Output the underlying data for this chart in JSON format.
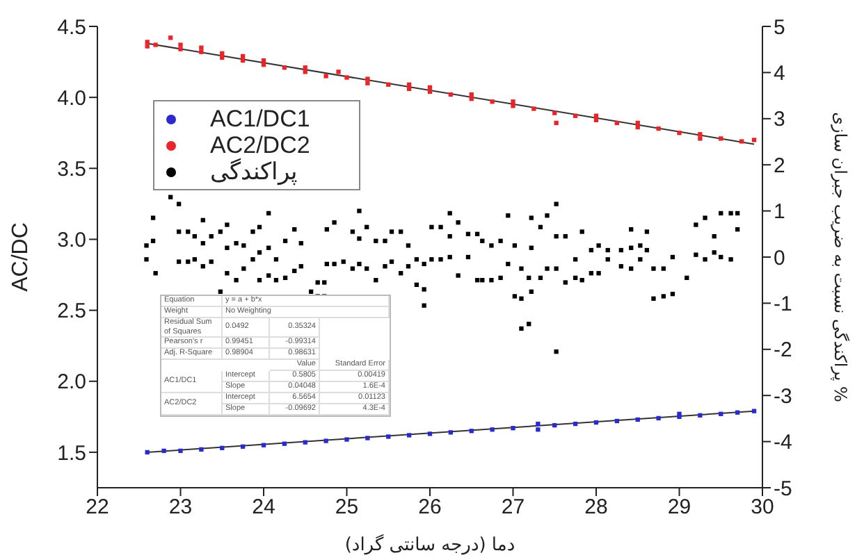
{
  "chart_data": {
    "type": "scatter",
    "xlabel": "دما (درجه سانتی گراد)",
    "ylabel": "AC/DC",
    "y2label": "پراکندگی نسبت به ضریب جبران سازی %",
    "xlim": [
      22,
      30
    ],
    "xticks": [
      22,
      23,
      24,
      25,
      26,
      27,
      28,
      29,
      30
    ],
    "ylim": [
      1.25,
      4.5
    ],
    "yticks": [
      1.5,
      {
        "value": 2,
        "label": "2.0"
      },
      2.5,
      {
        "value": 3,
        "label": "3.0"
      },
      3.5,
      {
        "value": 4,
        "label": "4.0"
      },
      4.5
    ],
    "y2lim": [
      -5,
      5
    ],
    "y2ticks": [
      -5,
      -4,
      -3,
      -2,
      -1,
      0,
      1,
      2,
      3,
      4,
      5
    ],
    "legend": "top left",
    "marker": "square",
    "series": [
      {
        "name": "AC1/DC1",
        "color": "#2a2ad0",
        "x": [
          22.6,
          22.8,
          23.0,
          23.25,
          23.5,
          23.75,
          24.0,
          24.25,
          24.5,
          24.75,
          25.0,
          25.25,
          25.5,
          25.75,
          26.0,
          26.25,
          26.5,
          26.75,
          27.0,
          27.3,
          27.3,
          27.5,
          27.75,
          28.0,
          28.25,
          28.5,
          28.75,
          29.0,
          29.0,
          29.25,
          29.5,
          29.7,
          29.9
        ],
        "values": [
          1.5,
          1.51,
          1.51,
          1.52,
          1.53,
          1.54,
          1.55,
          1.56,
          1.57,
          1.58,
          1.59,
          1.6,
          1.61,
          1.62,
          1.63,
          1.64,
          1.65,
          1.66,
          1.67,
          1.66,
          1.7,
          1.69,
          1.7,
          1.71,
          1.72,
          1.73,
          1.74,
          1.75,
          1.77,
          1.76,
          1.77,
          1.78,
          1.79
        ]
      },
      {
        "name": "AC2/DC2",
        "color": "#e8262a",
        "x": [
          22.6,
          22.6,
          22.7,
          22.88,
          23.0,
          23.0,
          23.25,
          23.25,
          23.5,
          23.5,
          23.75,
          23.75,
          24.0,
          24.0,
          24.25,
          24.5,
          24.5,
          24.75,
          24.9,
          25.0,
          25.25,
          25.25,
          25.5,
          25.75,
          25.75,
          26.0,
          26.0,
          26.25,
          26.5,
          26.5,
          26.75,
          27.0,
          27.0,
          27.25,
          27.5,
          27.52,
          27.75,
          28.0,
          28.0,
          28.25,
          28.5,
          28.5,
          28.75,
          29.0,
          29.25,
          29.25,
          29.5,
          29.75,
          29.9
        ],
        "values": [
          4.36,
          4.39,
          4.37,
          4.42,
          4.34,
          4.37,
          4.32,
          4.35,
          4.28,
          4.31,
          4.26,
          4.29,
          4.23,
          4.26,
          4.21,
          4.18,
          4.21,
          4.15,
          4.18,
          4.14,
          4.1,
          4.13,
          4.09,
          4.06,
          4.09,
          4.04,
          4.07,
          4.02,
          3.99,
          4.02,
          3.97,
          3.94,
          3.97,
          3.92,
          3.89,
          3.82,
          3.87,
          3.84,
          3.87,
          3.82,
          3.79,
          3.82,
          3.78,
          3.75,
          3.71,
          3.74,
          3.71,
          3.69,
          3.7
        ]
      },
      {
        "name": "پراکندگی",
        "color": "#000000",
        "axis": "y2",
        "x": [
          22.59,
          22.59,
          22.67,
          22.67,
          22.7,
          22.88,
          22.98,
          22.98,
          22.98,
          23.09,
          23.09,
          23.17,
          23.17,
          23.27,
          23.27,
          23.27,
          23.37,
          23.37,
          23.48,
          23.48,
          23.56,
          23.56,
          23.56,
          23.67,
          23.67,
          23.76,
          23.76,
          23.87,
          23.87,
          23.95,
          23.95,
          23.95,
          24.06,
          24.06,
          24.06,
          24.15,
          24.15,
          24.26,
          24.26,
          24.37,
          24.37,
          24.45,
          24.45,
          24.57,
          24.65,
          24.65,
          24.73,
          24.73,
          24.76,
          24.76,
          24.85,
          24.85,
          24.96,
          25.07,
          25.07,
          25.15,
          25.15,
          25.15,
          25.24,
          25.24,
          25.35,
          25.35,
          25.46,
          25.46,
          25.54,
          25.54,
          25.65,
          25.65,
          25.74,
          25.74,
          25.84,
          25.84,
          25.93,
          25.93,
          25.93,
          26.02,
          26.02,
          26.13,
          26.13,
          26.24,
          26.24,
          26.24,
          26.34,
          26.34,
          26.46,
          26.46,
          26.57,
          26.57,
          26.63,
          26.63,
          26.74,
          26.74,
          26.85,
          26.85,
          26.94,
          26.94,
          27.02,
          27.02,
          27.1,
          27.1,
          27.1,
          27.19,
          27.19,
          27.22,
          27.22,
          27.22,
          27.33,
          27.33,
          27.41,
          27.41,
          27.52,
          27.52,
          27.52,
          27.52,
          27.63,
          27.63,
          27.75,
          27.75,
          27.83,
          27.83,
          27.94,
          27.94,
          28.03,
          28.03,
          28.14,
          28.14,
          28.3,
          28.3,
          28.42,
          28.42,
          28.42,
          28.53,
          28.53,
          28.61,
          28.61,
          28.69,
          28.69,
          28.81,
          28.81,
          28.92,
          28.92,
          29.09,
          29.2,
          29.2,
          29.31,
          29.31,
          29.42,
          29.42,
          29.5,
          29.5,
          29.62,
          29.62,
          29.7,
          29.7
        ],
        "values": [
          0.25,
          -0.05,
          0.85,
          0.35,
          -0.35,
          1.3,
          1.15,
          0.55,
          -0.1,
          0.55,
          -0.1,
          0.45,
          -0.05,
          0.8,
          0.3,
          -0.2,
          0.45,
          -0.1,
          0.55,
          -0.75,
          0.7,
          0.2,
          -0.35,
          0.3,
          -0.5,
          0.25,
          -0.25,
          0.55,
          -0.05,
          0.65,
          0.1,
          -0.5,
          0.95,
          0.2,
          -0.4,
          -0.05,
          -0.5,
          0.35,
          -0.45,
          0.6,
          -0.3,
          0.3,
          -0.2,
          -0.75,
          -0.55,
          -0.85,
          -0.55,
          -0.85,
          0.6,
          -0.15,
          0.75,
          -0.15,
          -0.1,
          0.55,
          -0.25,
          1.0,
          0.4,
          -0.15,
          0.65,
          -0.25,
          0.35,
          -0.5,
          0.35,
          -0.2,
          0.55,
          -0.1,
          0.55,
          -0.35,
          0.25,
          -0.2,
          -0.05,
          -0.6,
          -0.15,
          -0.7,
          -1.05,
          0.65,
          -0.05,
          0.65,
          -0.05,
          0.95,
          0.45,
          0.0,
          0.75,
          -0.4,
          0.5,
          0.0,
          0.5,
          -0.5,
          0.35,
          -0.5,
          0.25,
          -0.5,
          0.35,
          -0.45,
          0.9,
          -0.15,
          0.25,
          -0.85,
          -0.25,
          -0.9,
          -1.55,
          -0.45,
          -1.45,
          0.85,
          0.2,
          -0.75,
          0.65,
          -0.45,
          0.9,
          -0.25,
          1.15,
          0.45,
          -0.25,
          -2.05,
          0.45,
          -0.55,
          -0.05,
          -0.45,
          0.55,
          -0.5,
          0.15,
          -0.35,
          0.25,
          -0.35,
          0.15,
          -0.05,
          0.15,
          -0.2,
          0.6,
          0.2,
          -0.25,
          0.25,
          -0.05,
          0.55,
          0.15,
          -0.25,
          -0.9,
          -0.25,
          -0.85,
          0.0,
          -0.8,
          -0.45,
          0.7,
          0.05,
          0.85,
          -0.05,
          0.45,
          0.1,
          0.95,
          0.0,
          0.95,
          -0.05,
          0.95,
          0.6
        ]
      },
      {
        "type": "line",
        "marker": "none",
        "color": "#333333",
        "x": [
          22.6,
          29.9
        ],
        "values": [
          1.5,
          1.79
        ]
      },
      {
        "type": "line",
        "marker": "none",
        "color": "#333333",
        "x": [
          22.6,
          29.9
        ],
        "values": [
          4.38,
          3.67
        ]
      }
    ],
    "annotations": [
      "Equation",
      "y = a + b*x",
      "Weight",
      "No Weighting",
      "Residual Sum of Squares",
      "0.0492",
      "0.35324",
      "Pearson's r",
      "0.99451",
      "-0.99314",
      "Adj. R-Square",
      "0.98904",
      "0.98631",
      "Value",
      "Standard Error",
      "AC1/DC1",
      "Intercept",
      "0.5805",
      "0.00419",
      "Slope",
      "0.04048",
      "1.6E-4",
      "AC2/DC2",
      "Intercept",
      "6.5654",
      "0.01123",
      "Slope",
      "-0.09692",
      "4.3E-4"
    ]
  }
}
